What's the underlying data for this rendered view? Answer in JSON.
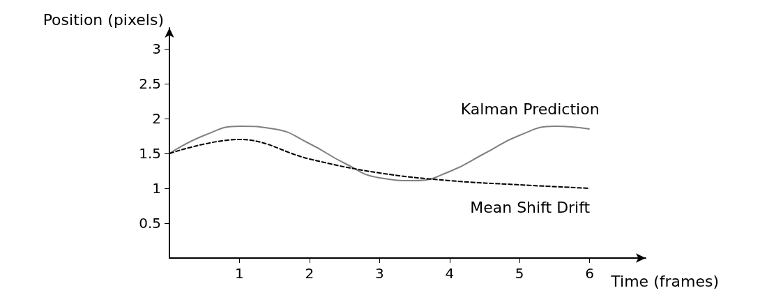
{
  "chart_data": {
    "type": "line",
    "xlabel": "Time (frames)",
    "ylabel": "Position (pixels)",
    "xlim": [
      0,
      6.8
    ],
    "ylim": [
      0,
      3.3
    ],
    "xticks": [
      1,
      2,
      3,
      4,
      5,
      6
    ],
    "yticks": [
      0.5,
      1,
      1.5,
      2,
      2.5,
      3
    ],
    "grid": false,
    "legend": false,
    "marker": "none",
    "series": [
      {
        "name": "Kalman Prediction",
        "color": "#808080",
        "line_style": "solid",
        "x": [
          0,
          0.5,
          1,
          1.5,
          2,
          2.5,
          3,
          3.5,
          4,
          4.5,
          5,
          5.5,
          6
        ],
        "values": [
          1.5,
          1.76,
          1.89,
          1.85,
          1.64,
          1.36,
          1.15,
          1.11,
          1.24,
          1.5,
          1.76,
          1.89,
          1.85
        ]
      },
      {
        "name": "Mean Shift Drift",
        "color": "#000000",
        "line_style": "dashed",
        "x": [
          0,
          1,
          2,
          3,
          4,
          5,
          6
        ],
        "values": [
          1.5,
          1.7,
          1.42,
          1.22,
          1.11,
          1.05,
          1.0
        ]
      }
    ]
  }
}
